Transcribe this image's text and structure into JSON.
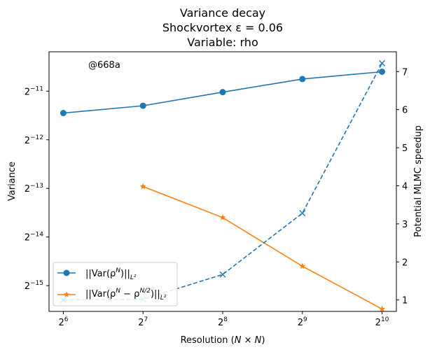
{
  "chart_data": {
    "type": "line",
    "title_lines": [
      "Variance decay",
      "Shockvortex ε = 0.06",
      "Variable: rho"
    ],
    "xlabel": "Resolution (N × N)",
    "ylabel_left": "Variance",
    "ylabel_right": "Potential MLMC speedup",
    "x_scale": "log2",
    "x_ticks": [
      {
        "value": 64,
        "base": "2",
        "exp": "6"
      },
      {
        "value": 128,
        "base": "2",
        "exp": "7"
      },
      {
        "value": 256,
        "base": "2",
        "exp": "8"
      },
      {
        "value": 512,
        "base": "2",
        "exp": "9"
      },
      {
        "value": 1024,
        "base": "2",
        "exp": "10"
      }
    ],
    "y_left_scale": "log2",
    "y_left_ticks": [
      {
        "exp_value": -15,
        "base": "2",
        "exp": "−15"
      },
      {
        "exp_value": -14,
        "base": "2",
        "exp": "−14"
      },
      {
        "exp_value": -13,
        "base": "2",
        "exp": "−13"
      },
      {
        "exp_value": -12,
        "base": "2",
        "exp": "−12"
      },
      {
        "exp_value": -11,
        "base": "2",
        "exp": "−11"
      }
    ],
    "y_right_ticks": [
      1,
      2,
      3,
      4,
      5,
      6,
      7
    ],
    "xlim": [
      56.5,
      1160
    ],
    "ylim_left_log2": [
      -15.53,
      -10.19
    ],
    "ylim_right": [
      0.7,
      7.52
    ],
    "series": [
      {
        "name_parts": [
          "||Var(ρ",
          "N",
          ")||",
          "L²"
        ],
        "color": "#1f77b4",
        "marker": "circle",
        "linestyle": "solid",
        "axis": "left",
        "x": [
          64,
          128,
          256,
          512,
          1024
        ],
        "y_log2": [
          -11.45,
          -11.3,
          -11.02,
          -10.75,
          -10.6
        ]
      },
      {
        "name_parts": [
          "||Var(ρ",
          "N",
          " − ρ",
          "N/2",
          ")||",
          "L²"
        ],
        "color": "#ff7f0e",
        "marker": "star",
        "linestyle": "solid",
        "axis": "left",
        "x": [
          128,
          256,
          512,
          1024
        ],
        "y_log2": [
          -12.96,
          -13.6,
          -14.6,
          -15.48
        ]
      },
      {
        "color": "#1f77b4",
        "marker": "x",
        "linestyle": "dashed",
        "axis": "right",
        "x": [
          64,
          128,
          256,
          512,
          1024
        ],
        "y": [
          1.0,
          1.02,
          1.67,
          3.28,
          7.22
        ]
      }
    ],
    "annotation_text": "@668a",
    "annotation_color": "#999999",
    "legend_position": "lower-left",
    "grid": false
  }
}
